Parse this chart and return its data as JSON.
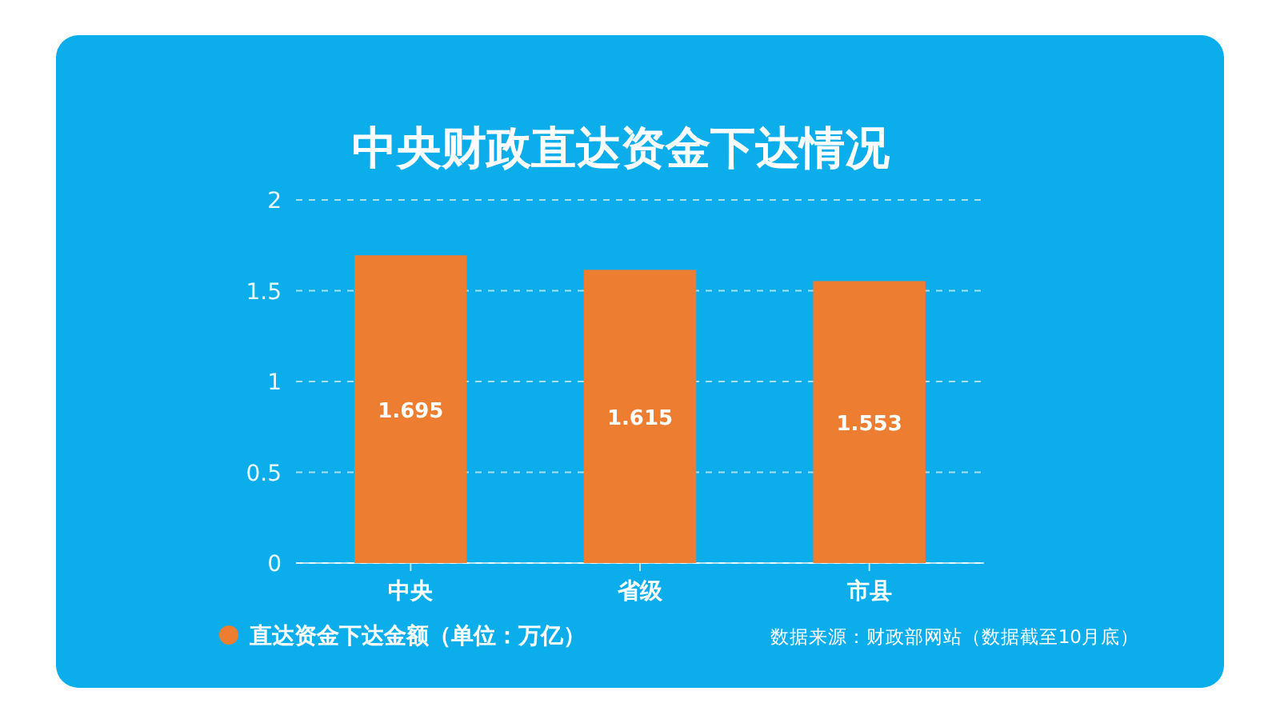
{
  "chart_data": {
    "type": "bar",
    "title": "中央财政直达资金下达情况",
    "categories": [
      "中央",
      "省级",
      "市县"
    ],
    "series": [
      {
        "name": "直达资金下达金额（单位：万亿）",
        "color": "#ed7d31",
        "values": [
          1.695,
          1.615,
          1.553
        ]
      }
    ],
    "ylim": [
      0,
      2
    ],
    "yticks": [
      0,
      0.5,
      1,
      1.5,
      2
    ],
    "grid": "y",
    "legend": "bottom left",
    "data_labels": true,
    "annotations": [
      "数据来源：财政部网站（数据截至10月底）"
    ]
  }
}
